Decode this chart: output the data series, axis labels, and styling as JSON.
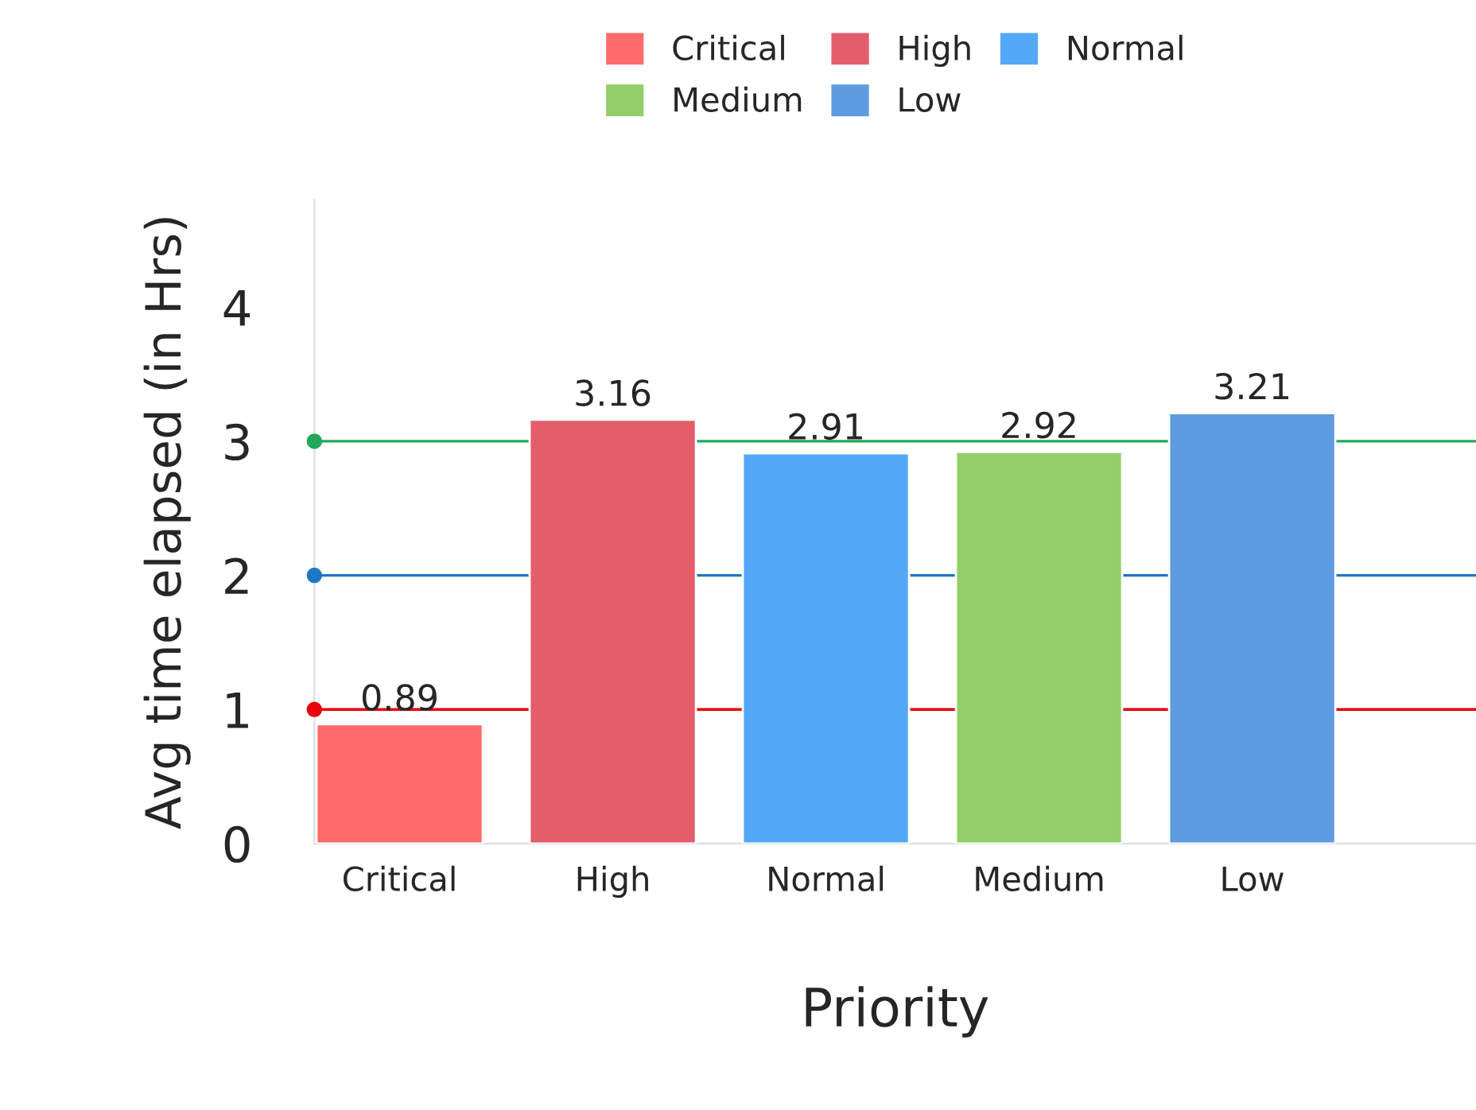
{
  "chart_data": {
    "type": "bar",
    "xlabel": "Priority",
    "ylabel": "Avg time elapsed (in Hrs)",
    "categories": [
      "Critical",
      "High",
      "Normal",
      "Medium",
      "Low"
    ],
    "series": [
      {
        "name": "Critical",
        "color": "#ff6b6b",
        "values": [
          0.89,
          null,
          null,
          null,
          null
        ]
      },
      {
        "name": "High",
        "color": "#e35d6a",
        "values": [
          null,
          3.16,
          null,
          null,
          null
        ]
      },
      {
        "name": "Normal",
        "color": "#53a8f8",
        "values": [
          null,
          null,
          2.91,
          null,
          null
        ]
      },
      {
        "name": "Medium",
        "color": "#94cd6a",
        "values": [
          null,
          null,
          null,
          2.92,
          null
        ]
      },
      {
        "name": "Low",
        "color": "#5f9be0",
        "values": [
          null,
          null,
          null,
          null,
          3.21
        ]
      }
    ],
    "ylim": [
      0,
      4.8
    ],
    "yticks": [
      0,
      1,
      2,
      3,
      4
    ],
    "ref_lines": [
      {
        "axis": "y",
        "value": 1,
        "color": "#e8000b"
      },
      {
        "axis": "y",
        "value": 2,
        "color": "#1f77c4"
      },
      {
        "axis": "y",
        "value": 3,
        "color": "#22a85a"
      }
    ],
    "data_labels": true,
    "grid": false,
    "legend": "top"
  }
}
